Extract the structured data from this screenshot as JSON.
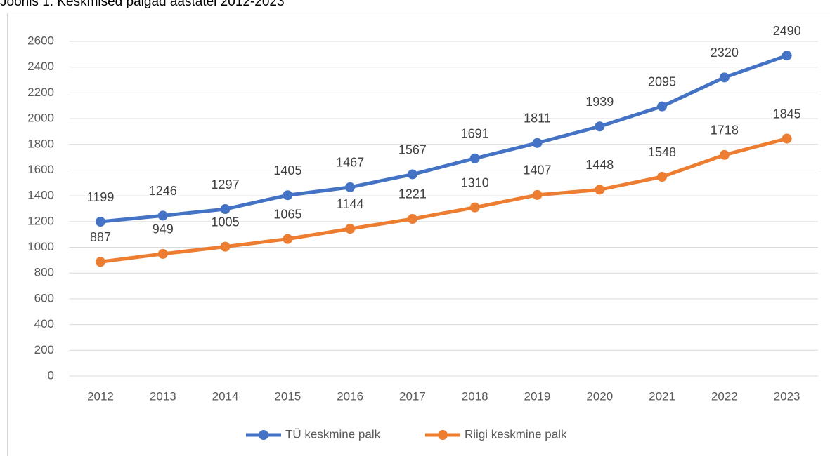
{
  "chart_data": {
    "type": "line",
    "title": "Joonis 1. Keskmised palgad aastatel 2012-2023",
    "categories": [
      "2012",
      "2013",
      "2014",
      "2015",
      "2016",
      "2017",
      "2018",
      "2019",
      "2020",
      "2021",
      "2022",
      "2023"
    ],
    "series": [
      {
        "name": "TÜ keskmine palk",
        "color": "#4472c4",
        "values": [
          1199,
          1246,
          1297,
          1405,
          1467,
          1567,
          1691,
          1811,
          1939,
          2095,
          2320,
          2490
        ]
      },
      {
        "name": "Riigi keskmine palk",
        "color": "#ed7d31",
        "values": [
          887,
          949,
          1005,
          1065,
          1144,
          1221,
          1310,
          1407,
          1448,
          1548,
          1718,
          1845
        ]
      }
    ],
    "ylim": [
      0,
      2600
    ],
    "yticks": [
      0,
      200,
      400,
      600,
      800,
      1000,
      1200,
      1400,
      1600,
      1800,
      2000,
      2200,
      2400,
      2600
    ],
    "grid": true,
    "legend": "bottom"
  }
}
